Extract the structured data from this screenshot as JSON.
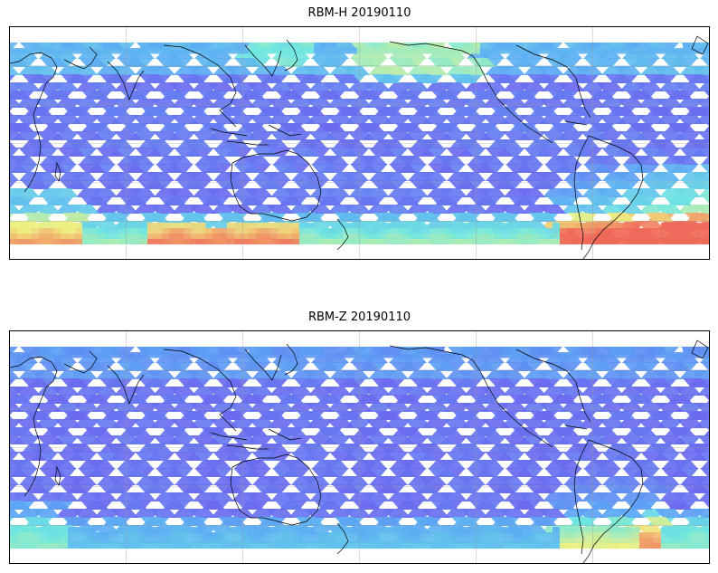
{
  "panels": [
    {
      "id": "top",
      "title": "RBM-H 20190110",
      "product": "RBM-H"
    },
    {
      "id": "bottom",
      "title": "RBM-Z 20190110",
      "product": "RBM-Z"
    }
  ],
  "map": {
    "projection": "equirectangular",
    "lon_range": [
      30,
      390
    ],
    "lat_range": [
      -60,
      60
    ],
    "gridlines": true,
    "coastlines": true,
    "colormap": "jet-like (blue low, red high)"
  },
  "colors": {
    "low": "#6a6af0",
    "mid_low": "#5aa8f5",
    "mid": "#6ee6e0",
    "mid_high": "#f0f080",
    "high": "#f06a5a"
  }
}
